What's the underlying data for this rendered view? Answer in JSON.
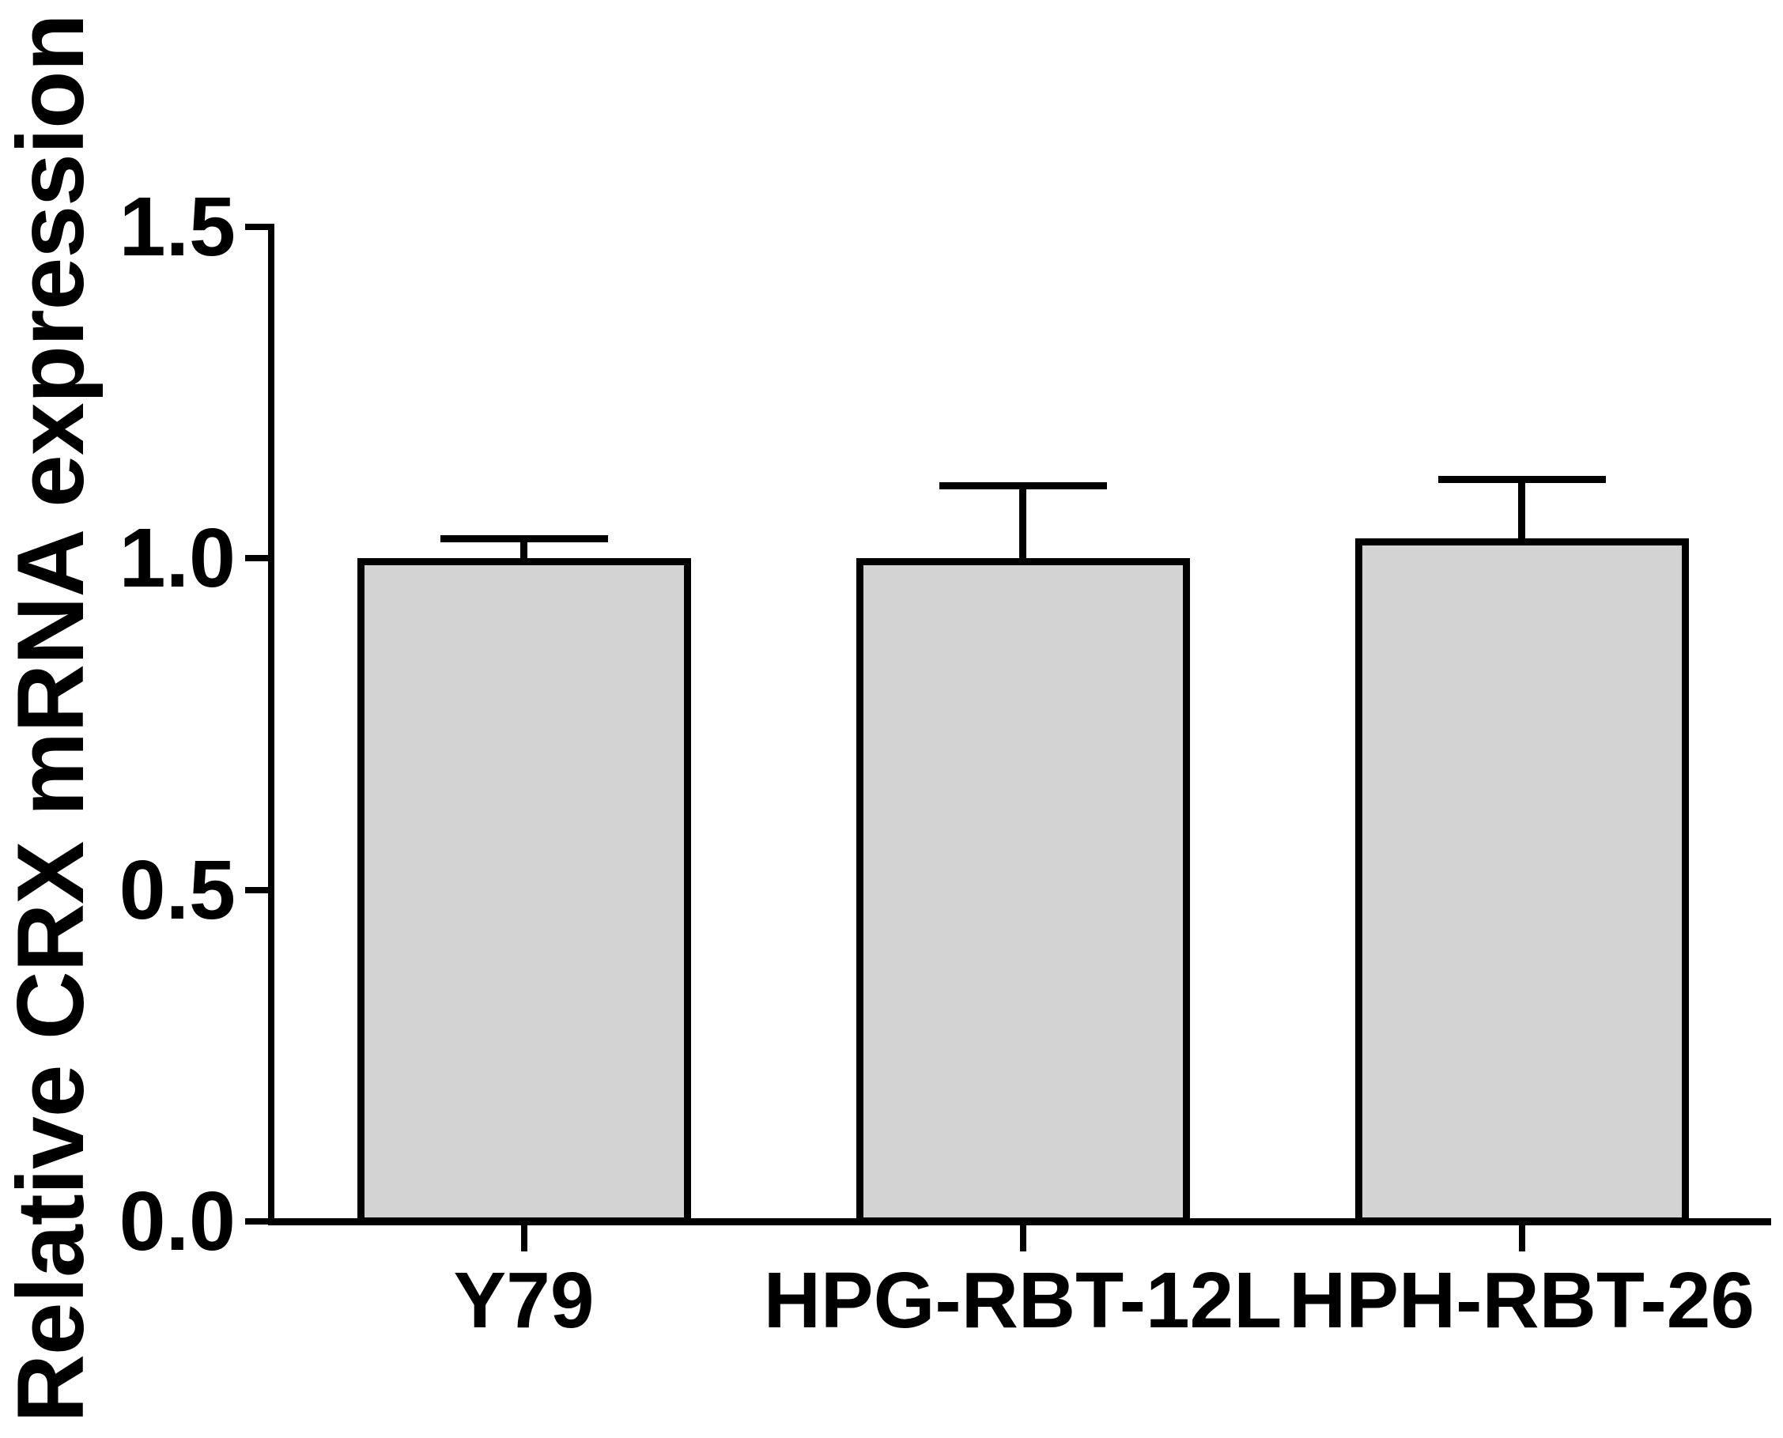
{
  "figure": {
    "background": "#ffffff",
    "text_color": "#000000"
  },
  "chart_data": {
    "type": "bar",
    "title": "",
    "ylabel": "Relative CRX mRNA expression",
    "xlabel": "",
    "categories": [
      "Y79",
      "HPG-RBT-12L",
      "HPH-RBT-26"
    ],
    "values": [
      1.0,
      1.0,
      1.03
    ],
    "errors_plus": [
      0.03,
      0.11,
      0.09
    ],
    "error_bar_style": "upper whisker with cap",
    "ylim": [
      0,
      1.5
    ],
    "yticks": [
      0.0,
      0.5,
      1.0,
      1.5
    ],
    "ytick_labels": [
      "0.0",
      "0.5",
      "1.0",
      "1.5"
    ],
    "xtick_labels": [
      "Y79",
      "HPG-RBT-12L",
      "HPH-RBT-26"
    ],
    "bar_fill_color": "#d3d3d3",
    "bar_border_color": "#000000",
    "axis_color": "#000000",
    "grid": "off",
    "legend": "none"
  }
}
